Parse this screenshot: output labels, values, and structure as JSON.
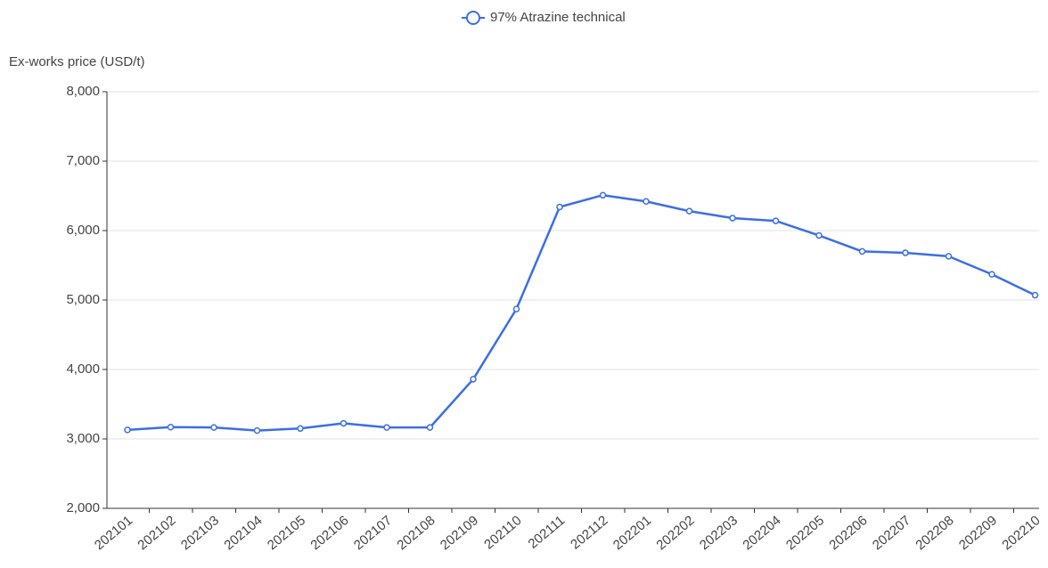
{
  "chart_data": {
    "type": "line",
    "y_axis_label": "Ex-works price (USD/t)",
    "categories": [
      "202101",
      "202102",
      "202103",
      "202104",
      "202105",
      "202106",
      "202107",
      "202108",
      "202109",
      "202110",
      "202111",
      "202112",
      "202201",
      "202202",
      "202203",
      "202204",
      "202205",
      "202206",
      "202207",
      "202208",
      "202209",
      "202210"
    ],
    "series": [
      {
        "name": "97% Atrazine technical",
        "color": "#3b6ee6",
        "values": [
          3130,
          3170,
          3165,
          3120,
          3150,
          3225,
          3165,
          3165,
          3860,
          4870,
          6340,
          6510,
          6420,
          6280,
          6180,
          6140,
          5930,
          5700,
          5680,
          5630,
          5370,
          5070
        ]
      }
    ],
    "ylim": [
      2000,
      8000
    ],
    "yticks": [
      {
        "value": 2000,
        "label": "2,000"
      },
      {
        "value": 3000,
        "label": "3,000"
      },
      {
        "value": 4000,
        "label": "4,000"
      },
      {
        "value": 5000,
        "label": "5,000"
      },
      {
        "value": 6000,
        "label": "6,000"
      },
      {
        "value": 7000,
        "label": "7,000"
      },
      {
        "value": 8000,
        "label": "8,000"
      }
    ],
    "grid": true,
    "legend": "top"
  }
}
